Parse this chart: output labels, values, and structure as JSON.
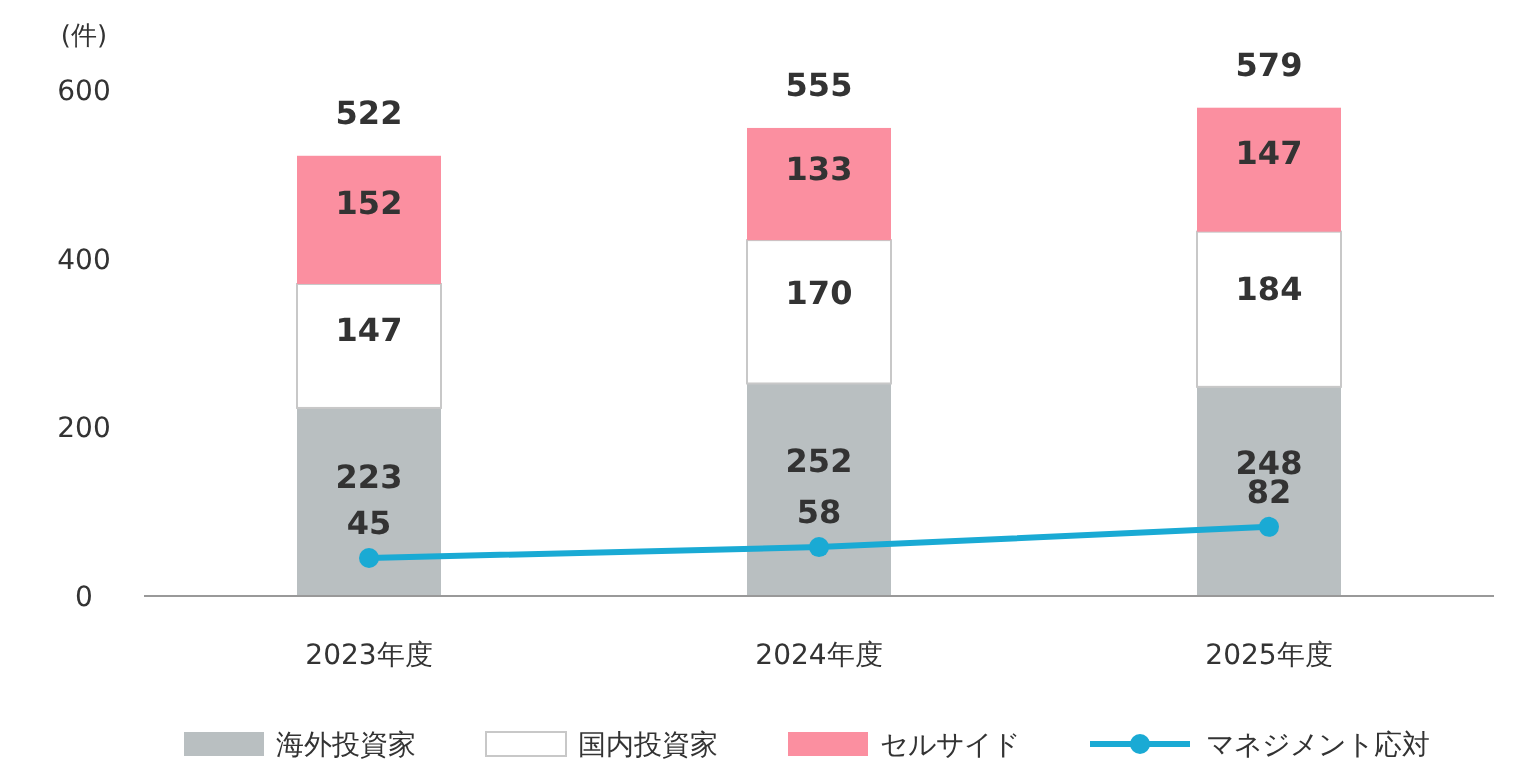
{
  "chart_data": {
    "type": "bar",
    "stacked": true,
    "ylabel": "(件)",
    "categories": [
      "2023年度",
      "2024年度",
      "2025年度"
    ],
    "series": [
      {
        "name": "海外投資家",
        "color": "#b9bfc1",
        "values": [
          223,
          252,
          248
        ]
      },
      {
        "name": "国内投資家",
        "color": "#ffffff",
        "values": [
          147,
          170,
          184
        ]
      },
      {
        "name": "セルサイド",
        "color": "#fb8fa0",
        "values": [
          152,
          133,
          147
        ]
      },
      {
        "name": "マネジメント応対",
        "type": "line",
        "color": "#1aaad4",
        "marker": "circle",
        "values": [
          45,
          58,
          82
        ]
      }
    ],
    "totals": [
      "522",
      "555",
      "579"
    ],
    "ylim": [
      0,
      600
    ],
    "yticks": [
      0,
      200,
      400,
      600
    ],
    "data_labels": true,
    "legend": "bottom",
    "grid": false
  }
}
